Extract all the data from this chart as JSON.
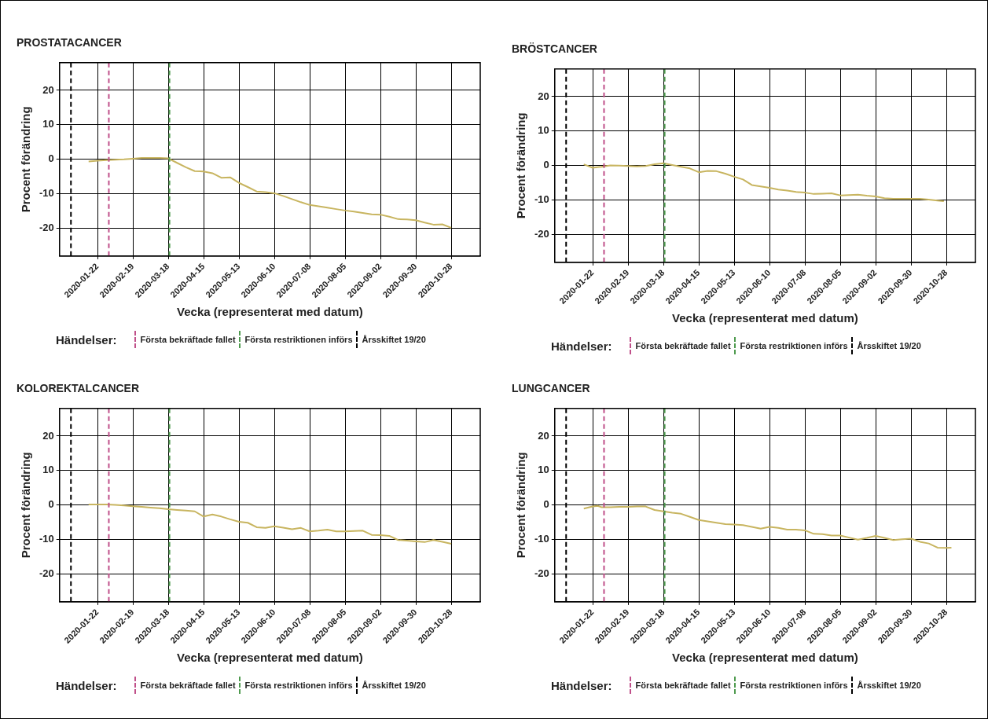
{
  "chart_data": [
    {
      "type": "line",
      "title": "PROSTATACANCER",
      "xlabel": "Vecka (representerat med datum)",
      "ylabel": "Procent förändring",
      "legend_title": "Händelser:",
      "legend": "bottom",
      "grid": true,
      "marker": "none",
      "line_style": "solid",
      "xlim": [
        "2019-12-23",
        "2020-11-20"
      ],
      "xticks": [
        "2020-01-22",
        "2020-02-19",
        "2020-03-18",
        "2020-04-15",
        "2020-05-13",
        "2020-06-10",
        "2020-07-08",
        "2020-08-05",
        "2020-09-02",
        "2020-09-30",
        "2020-10-28"
      ],
      "ylim": [
        -28,
        28
      ],
      "yticks": [
        -20,
        -10,
        0,
        10,
        20
      ],
      "ref_lines": [
        {
          "axis": "x",
          "value": "2020-01-31",
          "label": "Första bekräftade fallet",
          "color": "#c0508a",
          "line_style": "dashed"
        },
        {
          "axis": "x",
          "value": "2020-03-19",
          "label": "Första restriktionen införs",
          "color": "#4e9a4e",
          "line_style": "dashed"
        },
        {
          "axis": "x",
          "value": "2020-01-01",
          "label": "Årsskiftet 19/20",
          "color": "#000000",
          "line_style": "dashed"
        }
      ],
      "series": [
        {
          "color": "#c8b560",
          "x": [
            "2020-01-15",
            "2020-01-22",
            "2020-01-29",
            "2020-02-05",
            "2020-02-12",
            "2020-02-19",
            "2020-02-26",
            "2020-03-04",
            "2020-03-11",
            "2020-03-18",
            "2020-03-25",
            "2020-04-01",
            "2020-04-08",
            "2020-04-15",
            "2020-04-22",
            "2020-04-29",
            "2020-05-06",
            "2020-05-13",
            "2020-05-20",
            "2020-05-27",
            "2020-06-03",
            "2020-06-10",
            "2020-06-17",
            "2020-06-24",
            "2020-07-01",
            "2020-07-08",
            "2020-07-15",
            "2020-07-22",
            "2020-07-29",
            "2020-08-05",
            "2020-08-12",
            "2020-08-19",
            "2020-08-26",
            "2020-09-02",
            "2020-09-09",
            "2020-09-16",
            "2020-09-23",
            "2020-09-30",
            "2020-10-07",
            "2020-10-14",
            "2020-10-21",
            "2020-10-28"
          ],
          "values": [
            -0.6,
            -0.4,
            -0.2,
            -0.1,
            0,
            0.2,
            0.4,
            0.4,
            0.4,
            0.3,
            -1,
            -2.3,
            -3.4,
            -3.5,
            -4,
            -5.3,
            -5.2,
            -6.8,
            -8,
            -9.3,
            -9.5,
            -9.8,
            -10.6,
            -11.5,
            -12.4,
            -13.2,
            -13.6,
            -14,
            -14.4,
            -14.8,
            -15.1,
            -15.5,
            -15.9,
            -16,
            -16.6,
            -17.3,
            -17.4,
            -17.6,
            -18.3,
            -18.9,
            -18.8,
            -19.8
          ]
        }
      ]
    },
    {
      "type": "line",
      "title": "BRÖSTCANCER",
      "xlabel": "Vecka (representerat med datum)",
      "ylabel": "Procent förändring",
      "legend_title": "Händelser:",
      "legend": "bottom",
      "grid": true,
      "marker": "none",
      "line_style": "solid",
      "xlim": [
        "2019-12-23",
        "2020-11-20"
      ],
      "xticks": [
        "2020-01-22",
        "2020-02-19",
        "2020-03-18",
        "2020-04-15",
        "2020-05-13",
        "2020-06-10",
        "2020-07-08",
        "2020-08-05",
        "2020-09-02",
        "2020-09-30",
        "2020-10-28"
      ],
      "ylim": [
        -28,
        28
      ],
      "yticks": [
        -20,
        -10,
        0,
        10,
        20
      ],
      "ref_lines": [
        {
          "axis": "x",
          "value": "2020-01-31",
          "label": "Första bekräftade fallet",
          "color": "#c0508a",
          "line_style": "dashed"
        },
        {
          "axis": "x",
          "value": "2020-03-19",
          "label": "Första restriktionen införs",
          "color": "#4e9a4e",
          "line_style": "dashed"
        },
        {
          "axis": "x",
          "value": "2020-01-01",
          "label": "Årsskiftet 19/20",
          "color": "#000000",
          "line_style": "dashed"
        }
      ],
      "series": [
        {
          "color": "#c8b560",
          "x": [
            "2020-01-15",
            "2020-01-22",
            "2020-01-29",
            "2020-02-05",
            "2020-02-12",
            "2020-02-19",
            "2020-02-26",
            "2020-03-04",
            "2020-03-11",
            "2020-03-18",
            "2020-03-25",
            "2020-04-01",
            "2020-04-08",
            "2020-04-15",
            "2020-04-22",
            "2020-04-29",
            "2020-05-06",
            "2020-05-13",
            "2020-05-20",
            "2020-05-27",
            "2020-06-03",
            "2020-06-10",
            "2020-06-17",
            "2020-06-24",
            "2020-07-01",
            "2020-07-08",
            "2020-07-15",
            "2020-07-22",
            "2020-07-29",
            "2020-08-05",
            "2020-08-12",
            "2020-08-19",
            "2020-08-26",
            "2020-09-02",
            "2020-09-09",
            "2020-09-16",
            "2020-09-23",
            "2020-09-30",
            "2020-10-07",
            "2020-10-14",
            "2020-10-21",
            "2020-10-26"
          ],
          "values": [
            0.4,
            -0.6,
            -0.3,
            0.1,
            0,
            -0.1,
            -0.2,
            -0.1,
            0.4,
            0.7,
            0.2,
            -0.3,
            -0.8,
            -1.9,
            -1.5,
            -1.6,
            -2.3,
            -3.2,
            -4,
            -5.6,
            -6,
            -6.4,
            -6.9,
            -7.2,
            -7.6,
            -7.8,
            -8.2,
            -8.1,
            -8,
            -8.6,
            -8.5,
            -8.4,
            -8.7,
            -8.9,
            -9.4,
            -9.6,
            -9.6,
            -9.6,
            -9.6,
            -9.8,
            -10.1,
            -10.3
          ]
        }
      ]
    },
    {
      "type": "line",
      "title": "KOLOREKTALCANCER",
      "xlabel": "Vecka (representerat med datum)",
      "ylabel": "Procent förändring",
      "legend_title": "Händelser:",
      "legend": "bottom",
      "grid": true,
      "marker": "none",
      "line_style": "solid",
      "xlim": [
        "2019-12-23",
        "2020-11-20"
      ],
      "xticks": [
        "2020-01-22",
        "2020-02-19",
        "2020-03-18",
        "2020-04-15",
        "2020-05-13",
        "2020-06-10",
        "2020-07-08",
        "2020-08-05",
        "2020-09-02",
        "2020-09-30",
        "2020-10-28"
      ],
      "ylim": [
        -28,
        28
      ],
      "yticks": [
        -20,
        -10,
        0,
        10,
        20
      ],
      "ref_lines": [
        {
          "axis": "x",
          "value": "2020-01-31",
          "label": "Första bekräftade fallet",
          "color": "#c0508a",
          "line_style": "dashed"
        },
        {
          "axis": "x",
          "value": "2020-03-19",
          "label": "Första restriktionen införs",
          "color": "#4e9a4e",
          "line_style": "dashed"
        },
        {
          "axis": "x",
          "value": "2020-01-01",
          "label": "Årsskiftet 19/20",
          "color": "#000000",
          "line_style": "dashed"
        }
      ],
      "series": [
        {
          "color": "#c8b560",
          "x": [
            "2020-01-15",
            "2020-01-22",
            "2020-01-29",
            "2020-02-05",
            "2020-02-12",
            "2020-02-19",
            "2020-02-26",
            "2020-03-04",
            "2020-03-11",
            "2020-03-18",
            "2020-03-25",
            "2020-04-01",
            "2020-04-08",
            "2020-04-15",
            "2020-04-22",
            "2020-04-29",
            "2020-05-06",
            "2020-05-13",
            "2020-05-20",
            "2020-05-27",
            "2020-06-03",
            "2020-06-10",
            "2020-06-17",
            "2020-06-24",
            "2020-07-01",
            "2020-07-08",
            "2020-07-15",
            "2020-07-22",
            "2020-07-29",
            "2020-08-05",
            "2020-08-12",
            "2020-08-19",
            "2020-08-26",
            "2020-09-02",
            "2020-09-09",
            "2020-09-16",
            "2020-09-23",
            "2020-09-30",
            "2020-10-07",
            "2020-10-14",
            "2020-10-21",
            "2020-10-28"
          ],
          "values": [
            0.2,
            0.2,
            0.2,
            0.1,
            -0.1,
            -0.3,
            -0.5,
            -0.7,
            -0.9,
            -1.2,
            -1.4,
            -1.6,
            -1.8,
            -3.3,
            -2.7,
            -3.3,
            -4.1,
            -4.8,
            -5.1,
            -6.4,
            -6.6,
            -6.1,
            -6.5,
            -7,
            -6.6,
            -7.6,
            -7.4,
            -7.1,
            -7.6,
            -7.6,
            -7.5,
            -7.4,
            -8.6,
            -8.7,
            -8.9,
            -10.1,
            -10.3,
            -10.5,
            -10.7,
            -10.1,
            -10.6,
            -11.2
          ]
        }
      ]
    },
    {
      "type": "line",
      "title": "LUNGCANCER",
      "xlabel": "Vecka (representerat med datum)",
      "ylabel": "Procent förändring",
      "legend_title": "Händelser:",
      "legend": "bottom",
      "grid": true,
      "marker": "none",
      "line_style": "solid",
      "xlim": [
        "2019-12-23",
        "2020-11-20"
      ],
      "xticks": [
        "2020-01-22",
        "2020-02-19",
        "2020-03-18",
        "2020-04-15",
        "2020-05-13",
        "2020-06-10",
        "2020-07-08",
        "2020-08-05",
        "2020-09-02",
        "2020-09-30",
        "2020-10-28"
      ],
      "ylim": [
        -28,
        28
      ],
      "yticks": [
        -20,
        -10,
        0,
        10,
        20
      ],
      "ref_lines": [
        {
          "axis": "x",
          "value": "2020-01-31",
          "label": "Första bekräftade fallet",
          "color": "#c0508a",
          "line_style": "dashed"
        },
        {
          "axis": "x",
          "value": "2020-03-19",
          "label": "Första restriktionen införs",
          "color": "#4e9a4e",
          "line_style": "dashed"
        },
        {
          "axis": "x",
          "value": "2020-01-01",
          "label": "Årsskiftet 19/20",
          "color": "#000000",
          "line_style": "dashed"
        }
      ],
      "series": [
        {
          "color": "#c8b560",
          "x": [
            "2020-01-15",
            "2020-01-22",
            "2020-01-26",
            "2020-01-29",
            "2020-02-05",
            "2020-02-12",
            "2020-02-19",
            "2020-02-26",
            "2020-03-04",
            "2020-03-11",
            "2020-03-18",
            "2020-03-25",
            "2020-04-01",
            "2020-04-08",
            "2020-04-15",
            "2020-04-22",
            "2020-04-29",
            "2020-05-06",
            "2020-05-13",
            "2020-05-20",
            "2020-05-27",
            "2020-06-03",
            "2020-06-10",
            "2020-06-17",
            "2020-06-24",
            "2020-07-01",
            "2020-07-08",
            "2020-07-15",
            "2020-07-22",
            "2020-07-29",
            "2020-08-05",
            "2020-08-12",
            "2020-08-19",
            "2020-08-26",
            "2020-09-02",
            "2020-09-09",
            "2020-09-16",
            "2020-09-23",
            "2020-09-30",
            "2020-10-07",
            "2020-10-14",
            "2020-10-21",
            "2020-10-28",
            "2020-11-01"
          ],
          "values": [
            -1,
            -0.4,
            -0.2,
            -0.6,
            -0.6,
            -0.5,
            -0.5,
            -0.4,
            -0.4,
            -1.4,
            -1.8,
            -2.2,
            -2.5,
            -3.4,
            -4.3,
            -4.7,
            -5.1,
            -5.5,
            -5.6,
            -5.8,
            -6.3,
            -6.8,
            -6.3,
            -6.6,
            -7.1,
            -7.1,
            -7.3,
            -8.3,
            -8.4,
            -8.8,
            -8.8,
            -9.4,
            -10,
            -9.5,
            -8.9,
            -9.5,
            -10.1,
            -9.9,
            -9.7,
            -10.6,
            -11.1,
            -12.3,
            -12.4,
            -12.3
          ]
        }
      ]
    }
  ]
}
